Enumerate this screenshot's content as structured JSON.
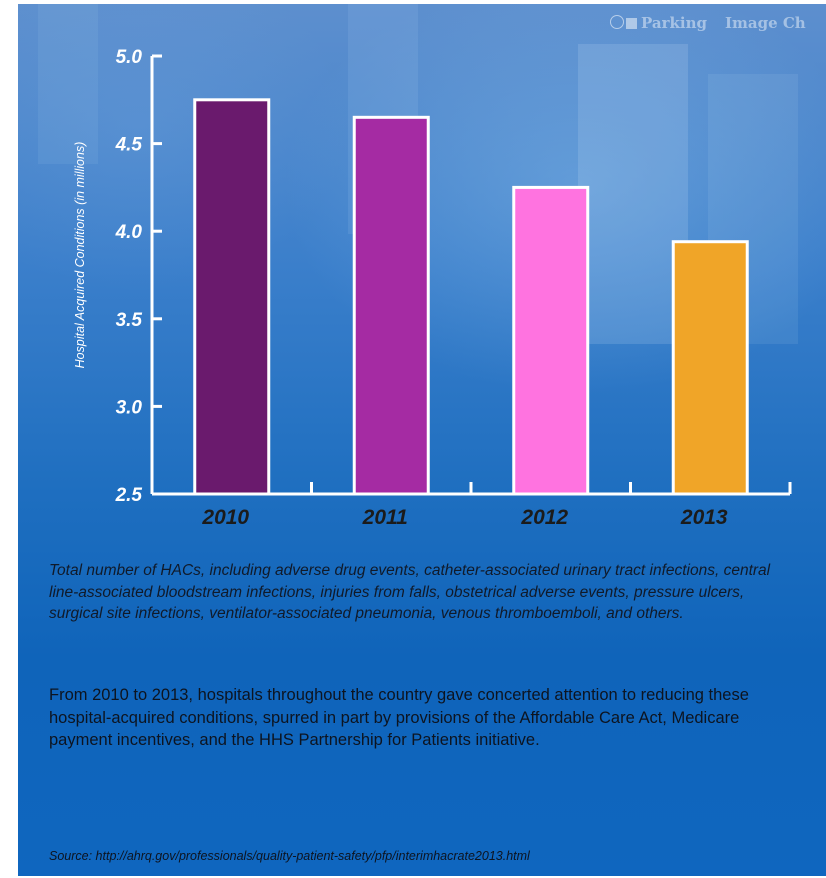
{
  "overlay": {
    "items": [
      "Parking",
      "Image Ch"
    ]
  },
  "chart_data": {
    "type": "bar",
    "categories": [
      "2010",
      "2011",
      "2012",
      "2013"
    ],
    "values": [
      4.75,
      4.65,
      4.25,
      3.94
    ],
    "ylabel": "Hospital Acquired Conditions (in millions)",
    "xlabel": "",
    "ylim": [
      2.5,
      5.0
    ],
    "yticks": [
      "5.0",
      "4.5",
      "4.0",
      "3.5",
      "3.0",
      "2.5"
    ],
    "colors": [
      "#6a1a6d",
      "#a52ba3",
      "#ff73e0",
      "#f0a528"
    ],
    "grid": false,
    "legend": "none"
  },
  "caption": "Total number of HACs, including adverse drug events, catheter-associated urinary tract infections, central line-associated bloodstream infections, injuries from falls, obstetrical adverse events, pressure ulcers, surgical site infections, ventilator-associated pneumonia, venous thromboemboli, and others.",
  "body": "From 2010 to 2013, hospitals throughout the country gave concerted attention to reducing these hospital-acquired conditions, spurred in part by provisions of the Affordable Care Act, Medicare payment incentives, and the HHS Partnership for Patients initiative.",
  "source": "Source: http://ahrq.gov/professionals/quality-patient-safety/pfp/interimhacrate2013.html"
}
